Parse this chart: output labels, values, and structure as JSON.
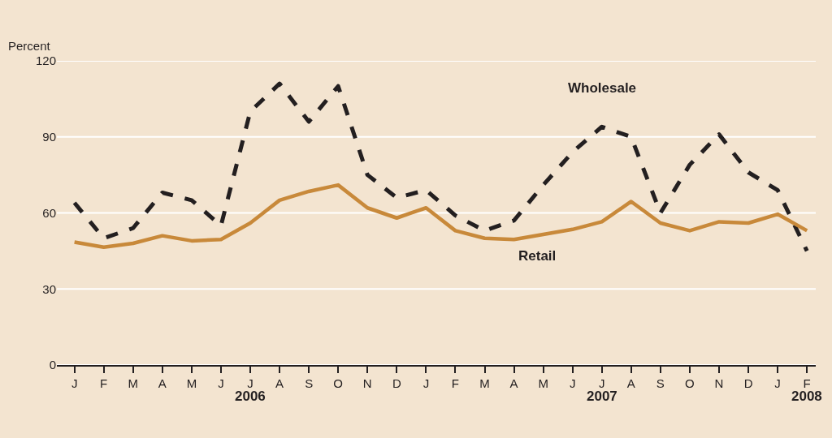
{
  "chart_data": {
    "type": "line",
    "ylabel": "Percent",
    "categories": [
      "J",
      "F",
      "M",
      "A",
      "M",
      "J",
      "J",
      "A",
      "S",
      "O",
      "N",
      "D",
      "J",
      "F",
      "M",
      "A",
      "M",
      "J",
      "J",
      "A",
      "S",
      "O",
      "N",
      "D",
      "J",
      "F"
    ],
    "series": [
      {
        "name": "Wholesale",
        "color": "#231f20",
        "line_style": "dashed",
        "values": [
          64,
          50,
          54,
          68,
          65,
          55,
          100,
          111,
          96,
          110,
          75,
          66,
          69,
          59,
          53,
          57,
          71,
          84,
          94,
          90,
          60,
          79,
          91,
          76,
          69,
          45
        ]
      },
      {
        "name": "Retail",
        "color": "#c8893a",
        "line_style": "solid",
        "values": [
          48.5,
          46.5,
          48,
          51,
          49,
          49.5,
          56,
          65,
          68.5,
          71,
          62,
          58,
          62,
          53,
          50,
          49.5,
          51.5,
          53.5,
          56.5,
          64.5,
          56,
          53,
          56.5,
          56,
          59.5,
          53
        ]
      }
    ],
    "ylim": [
      0,
      120
    ],
    "yticks": [
      0,
      30,
      60,
      90,
      120
    ],
    "annotations": [
      "2006",
      "2007",
      "2008"
    ],
    "grid": "y",
    "legend": false,
    "marker": "none"
  }
}
